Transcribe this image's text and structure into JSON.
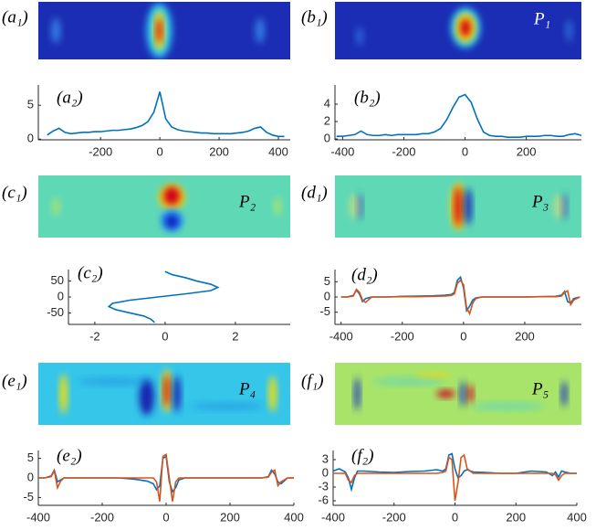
{
  "chart_data": [
    {
      "type": "image",
      "label": "(a₁)"
    },
    {
      "type": "image",
      "label": "(b₁)",
      "annotation": "P₁"
    },
    {
      "type": "line",
      "label": "(a₂)",
      "x": [
        -380,
        -360,
        -340,
        -320,
        -300,
        -280,
        -260,
        -240,
        -220,
        -200,
        -180,
        -160,
        -140,
        -120,
        -100,
        -80,
        -60,
        -40,
        -20,
        0,
        20,
        40,
        60,
        80,
        100,
        120,
        140,
        160,
        180,
        200,
        220,
        240,
        260,
        280,
        300,
        320,
        340,
        360,
        380,
        400,
        420
      ],
      "series": [
        {
          "color": "#0072bd",
          "values": [
            0.6,
            1.2,
            1.6,
            1.0,
            0.8,
            0.9,
            1.0,
            1.0,
            1.1,
            1.1,
            1.2,
            1.3,
            1.3,
            1.4,
            1.5,
            1.7,
            2.0,
            2.6,
            4.0,
            7.0,
            3.0,
            1.8,
            1.4,
            1.2,
            1.1,
            1.0,
            0.9,
            0.9,
            0.8,
            0.8,
            0.8,
            0.8,
            0.9,
            1.0,
            1.2,
            1.6,
            1.8,
            1.0,
            0.6,
            0.4,
            0.4
          ]
        }
      ],
      "xlim": [
        -410,
        440
      ],
      "ylim": [
        -0.1,
        8
      ],
      "xticks": [
        -200,
        0,
        200,
        400
      ],
      "yticks": [
        0,
        5
      ]
    },
    {
      "type": "line",
      "label": "(b₂)",
      "x": [
        -420,
        -400,
        -380,
        -360,
        -340,
        -320,
        -300,
        -280,
        -260,
        -240,
        -220,
        -200,
        -180,
        -160,
        -140,
        -120,
        -100,
        -80,
        -60,
        -40,
        -20,
        0,
        20,
        40,
        60,
        80,
        100,
        120,
        140,
        160,
        180,
        200,
        220,
        240,
        260,
        280,
        300,
        320,
        340,
        360,
        380
      ],
      "series": [
        {
          "color": "#0072bd",
          "values": [
            0.3,
            0.3,
            0.4,
            0.5,
            0.9,
            0.5,
            0.4,
            0.4,
            0.5,
            0.4,
            0.5,
            0.5,
            0.5,
            0.5,
            0.6,
            0.6,
            0.8,
            1.2,
            2.2,
            3.6,
            4.8,
            5.1,
            4.2,
            2.3,
            0.8,
            0.4,
            0.3,
            0.3,
            0.2,
            0.2,
            0.2,
            0.3,
            0.3,
            0.3,
            0.4,
            0.4,
            0.3,
            0.3,
            0.5,
            0.6,
            0.4
          ]
        }
      ],
      "xlim": [
        -425,
        380
      ],
      "ylim": [
        -0.1,
        6.2
      ],
      "xticks": [
        -400,
        -200,
        0,
        200
      ],
      "yticks": [
        0,
        2,
        4
      ]
    },
    {
      "type": "image",
      "label": "(c₁)",
      "annotation": "P₂"
    },
    {
      "type": "image",
      "label": "(d₁)",
      "annotation": "P₃"
    },
    {
      "type": "line",
      "label": "(c₂)",
      "x": [
        0,
        0.2,
        0.6,
        0.9,
        1.3,
        1.5,
        1.3,
        0.6,
        -0.2,
        -1.0,
        -1.5,
        -1.6,
        -1.4,
        -1.0,
        -0.6,
        -0.4,
        -0.3
      ],
      "series": [
        {
          "color": "#0072bd",
          "values": [
            80,
            70,
            60,
            50,
            40,
            30,
            20,
            10,
            0,
            -10,
            -20,
            -30,
            -40,
            -50,
            -60,
            -70,
            -80
          ]
        }
      ],
      "xlim": [
        -2.75,
        3.56
      ],
      "ylim": [
        -86,
        86
      ],
      "xticks": [
        -2,
        0,
        2
      ],
      "yticks": [
        -50,
        0,
        50
      ]
    },
    {
      "type": "line",
      "label": "(d₂)",
      "x": [
        -400,
        -380,
        -360,
        -350,
        -340,
        -330,
        -320,
        -300,
        -250,
        -200,
        -150,
        -100,
        -60,
        -40,
        -30,
        -20,
        -10,
        0,
        10,
        20,
        30,
        40,
        60,
        100,
        150,
        200,
        250,
        300,
        320,
        330,
        340,
        350,
        360,
        380
      ],
      "series": [
        {
          "color": "#0072bd",
          "values": [
            0,
            0,
            0.5,
            2.2,
            1.0,
            -1.5,
            -0.5,
            0,
            0,
            0.2,
            0.3,
            0.4,
            0.6,
            0.8,
            1.5,
            5.5,
            6.5,
            3.0,
            -4.5,
            -3.0,
            -1.0,
            -0.3,
            0,
            0,
            0,
            0,
            0.1,
            0.2,
            0.6,
            1.8,
            -1.5,
            -2.0,
            -0.5,
            0
          ]
        },
        {
          "color": "#d95319",
          "values": [
            0,
            0,
            0.3,
            2.5,
            1.5,
            -1.0,
            -1.8,
            0,
            0,
            0.1,
            0.1,
            0.2,
            0.3,
            0.5,
            1.0,
            4.5,
            5.5,
            4.0,
            -3.5,
            -5.5,
            -2.0,
            -0.5,
            0,
            0,
            0,
            0,
            0.1,
            0.1,
            0.3,
            1.5,
            2.0,
            -2.5,
            -1.0,
            0
          ]
        }
      ],
      "xlim": [
        -420,
        385
      ],
      "ylim": [
        -9,
        9
      ],
      "xticks": [
        -400,
        -200,
        0,
        200
      ],
      "yticks": [
        -5,
        0,
        5
      ]
    },
    {
      "type": "image",
      "label": "(e₁)",
      "annotation": "P₄"
    },
    {
      "type": "image",
      "label": "(f₁)",
      "annotation": "P₅"
    },
    {
      "type": "line",
      "label": "(e₂)",
      "x": [
        -400,
        -380,
        -360,
        -350,
        -340,
        -330,
        -320,
        -300,
        -250,
        -200,
        -150,
        -100,
        -60,
        -40,
        -30,
        -20,
        -10,
        0,
        10,
        20,
        30,
        40,
        60,
        100,
        150,
        200,
        250,
        300,
        320,
        330,
        340,
        350,
        360,
        380,
        400
      ],
      "series": [
        {
          "color": "#0072bd",
          "values": [
            0,
            0,
            0.5,
            2.0,
            -1.0,
            -0.5,
            0,
            0,
            0,
            0,
            0,
            -0.3,
            -0.8,
            -1.5,
            -3.0,
            -2.0,
            5.0,
            5.5,
            -1.0,
            -3.5,
            -2.5,
            -0.5,
            0,
            0,
            0,
            0,
            0,
            0,
            0.3,
            2.0,
            1.0,
            -1.0,
            -1.5,
            0,
            0
          ]
        },
        {
          "color": "#d95319",
          "values": [
            0,
            0,
            0.3,
            1.8,
            -2.5,
            -0.8,
            0,
            0,
            0,
            0,
            0,
            0,
            0,
            0,
            -1.0,
            -6.0,
            5.5,
            6.0,
            0,
            -6.0,
            -1.0,
            0,
            0,
            0,
            0,
            0,
            0,
            0,
            0.2,
            1.5,
            2.0,
            -2.0,
            -1.0,
            0,
            0
          ]
        }
      ],
      "xlim": [
        -400,
        400
      ],
      "ylim": [
        -7,
        7
      ],
      "xticks": [
        -400,
        -200,
        0,
        200,
        400
      ],
      "yticks": [
        -5,
        0,
        5
      ]
    },
    {
      "type": "line",
      "label": "(f₂)",
      "x": [
        -400,
        -380,
        -360,
        -350,
        -340,
        -330,
        -320,
        -300,
        -250,
        -200,
        -150,
        -100,
        -60,
        -40,
        -30,
        -20,
        -10,
        0,
        10,
        20,
        30,
        40,
        60,
        100,
        150,
        200,
        250,
        300,
        320,
        330,
        340,
        350,
        360,
        380,
        400
      ],
      "series": [
        {
          "color": "#0072bd",
          "values": [
            0.5,
            1.0,
            0.3,
            -1.0,
            -3.5,
            -1.0,
            0.5,
            0.5,
            0.3,
            0.2,
            0.4,
            0.5,
            0.8,
            0.5,
            1.0,
            4.0,
            4.3,
            1.0,
            -1.0,
            -0.5,
            0.5,
            0.8,
            0.3,
            0.2,
            0,
            0,
            0.5,
            0.3,
            -0.5,
            0.3,
            -0.8,
            0.5,
            0.3,
            0,
            0
          ]
        },
        {
          "color": "#d95319",
          "values": [
            0,
            0,
            0,
            -1.5,
            -2.0,
            -0.5,
            0,
            0,
            0,
            0,
            0,
            0,
            0,
            0.2,
            0.5,
            3.5,
            3.0,
            -6.0,
            -2.0,
            3.5,
            4.0,
            1.0,
            0,
            0,
            0,
            0,
            0,
            0,
            0,
            -0.3,
            -1.5,
            -0.5,
            0,
            0,
            0
          ]
        }
      ],
      "xlim": [
        -400,
        400
      ],
      "ylim": [
        -7,
        5
      ],
      "xticks": [
        -400,
        -200,
        0,
        200,
        400
      ],
      "yticks": [
        -6,
        -3,
        0,
        3
      ]
    }
  ]
}
